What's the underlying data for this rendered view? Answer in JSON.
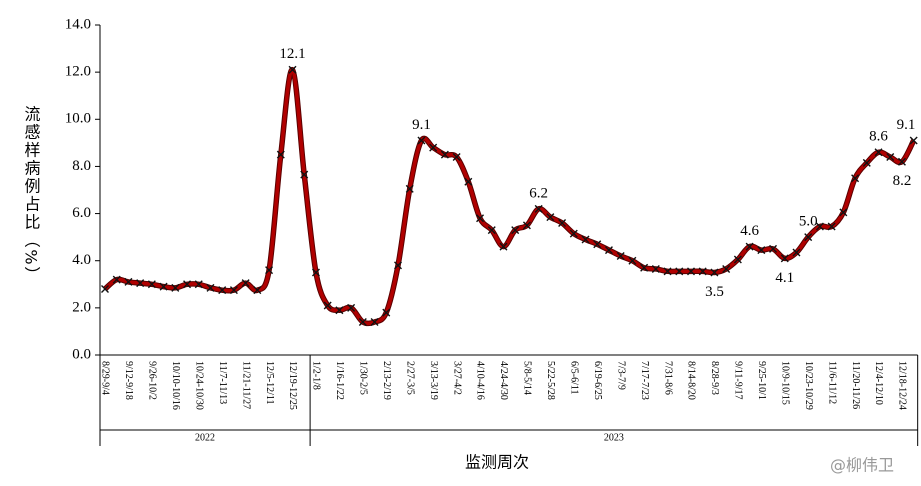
{
  "chart_data": {
    "type": "line",
    "y_label": "流感样病例占比（%）",
    "x_label": "监测周次",
    "watermark": "@柳伟卫",
    "color": "#b00000",
    "ylim": [
      0,
      14
    ],
    "yticks": [
      {
        "value": 0,
        "label": "0.0"
      },
      {
        "value": 2,
        "label": "2.0"
      },
      {
        "value": 4,
        "label": "4.0"
      },
      {
        "value": 6,
        "label": "6.0"
      },
      {
        "value": 8,
        "label": "8.0"
      },
      {
        "value": 10,
        "label": "10.0"
      },
      {
        "value": 12,
        "label": "12.0"
      },
      {
        "value": 14,
        "label": "14.0"
      }
    ],
    "categories": [
      "8/29-9/4",
      null,
      "9/12-9/18",
      null,
      "9/26-10/2",
      null,
      "10/10-10/16",
      null,
      "10/24-10/30",
      null,
      "11/7-11/13",
      null,
      "11/21-11/27",
      null,
      "12/5-12/11",
      null,
      "12/19-12/25",
      null,
      "1/2-1/8",
      null,
      "1/16-1/22",
      null,
      "1/30-2/5",
      null,
      "2/13-2/19",
      null,
      "2/27-3/5",
      null,
      "3/13-3/19",
      null,
      "3/27-4/2",
      null,
      "4/10-4/16",
      null,
      "4/24-4/30",
      null,
      "5/8-5/14",
      null,
      "5/22-5/28",
      null,
      "6/5-6/11",
      null,
      "6/19-6/25",
      null,
      "7/3-7/9",
      null,
      "7/17-7/23",
      null,
      "7/31-8/6",
      null,
      "8/14-8/20",
      null,
      "8/28-9/3",
      null,
      "9/11-9/17",
      null,
      "9/25-10/1",
      null,
      "10/9-10/15",
      null,
      "10/23-10/29",
      null,
      "11/6-11/12",
      null,
      "11/20-11/26",
      null,
      "12/4-12/10",
      null,
      "12/18-12/24",
      null
    ],
    "groups": [
      "2022",
      "2022",
      "2022",
      "2022",
      "2022",
      "2022",
      "2022",
      "2022",
      "2022",
      "2022",
      "2022",
      "2022",
      "2022",
      "2022",
      "2022",
      "2022",
      "2022",
      "2022",
      "2023",
      "2023",
      "2023",
      "2023",
      "2023",
      "2023",
      "2023",
      "2023",
      "2023",
      "2023",
      "2023",
      "2023",
      "2023",
      "2023",
      "2023",
      "2023",
      "2023",
      "2023",
      "2023",
      "2023",
      "2023",
      "2023",
      "2023",
      "2023",
      "2023",
      "2023",
      "2023",
      "2023",
      "2023",
      "2023",
      "2023",
      "2023",
      "2023",
      "2023",
      "2023",
      "2023",
      "2023",
      "2023",
      "2023",
      "2023",
      "2023",
      "2023",
      "2023",
      "2023",
      "2023",
      "2023",
      "2023",
      "2023",
      "2023",
      "2023",
      "2023",
      "2023"
    ],
    "values": [
      2.8,
      3.2,
      3.1,
      3.05,
      3.0,
      2.9,
      2.85,
      3.0,
      3.0,
      2.85,
      2.75,
      2.75,
      3.05,
      2.75,
      3.6,
      8.5,
      12.1,
      7.65,
      3.5,
      2.1,
      1.9,
      2.0,
      1.4,
      1.4,
      1.8,
      3.8,
      7.05,
      9.1,
      8.8,
      8.5,
      8.4,
      7.35,
      5.8,
      5.3,
      4.6,
      5.3,
      5.5,
      6.2,
      5.85,
      5.6,
      5.15,
      4.9,
      4.7,
      4.45,
      4.2,
      4.0,
      3.7,
      3.65,
      3.55,
      3.55,
      3.55,
      3.55,
      3.5,
      3.65,
      4.05,
      4.6,
      4.45,
      4.5,
      4.1,
      4.35,
      5.0,
      5.45,
      5.45,
      6.05,
      7.5,
      8.15,
      8.6,
      8.4,
      8.2,
      9.1
    ],
    "value_labels": [
      null,
      null,
      null,
      null,
      null,
      null,
      null,
      null,
      null,
      null,
      null,
      null,
      null,
      null,
      null,
      null,
      "12.1",
      null,
      null,
      null,
      null,
      null,
      null,
      null,
      null,
      null,
      null,
      "9.1",
      null,
      null,
      null,
      null,
      null,
      null,
      null,
      null,
      null,
      "6.2",
      null,
      null,
      null,
      null,
      null,
      null,
      null,
      null,
      null,
      null,
      null,
      null,
      null,
      null,
      "3.5",
      null,
      null,
      "4.6",
      null,
      null,
      "4.1",
      null,
      "5.0",
      null,
      null,
      null,
      null,
      null,
      "8.6",
      null,
      "8.2",
      "9.1"
    ]
  }
}
